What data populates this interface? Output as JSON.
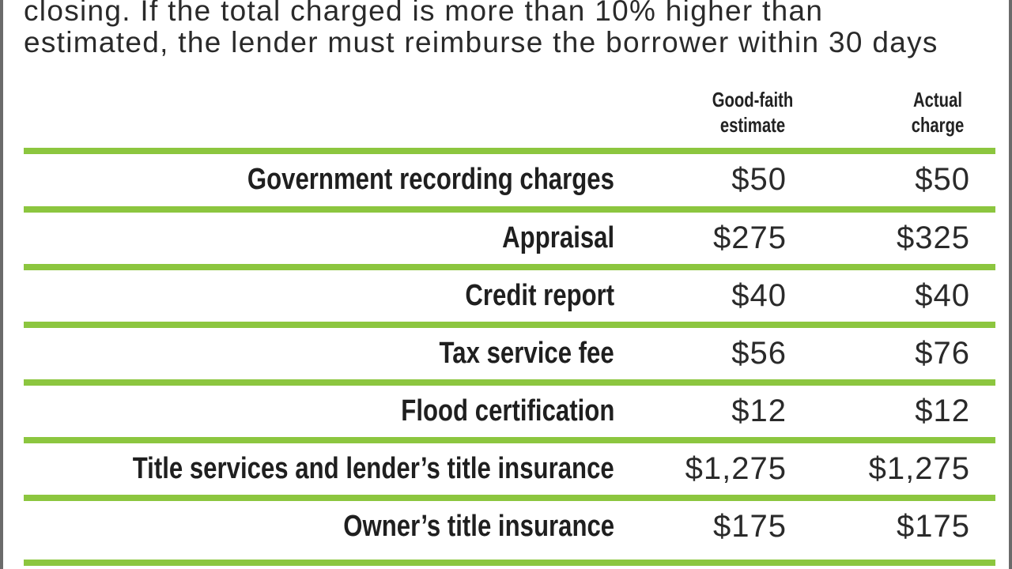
{
  "intro": {
    "line1": "closing. If the total charged is more than 10% higher than",
    "line2": "estimated, the lender must reimburse the borrower within 30 days"
  },
  "columns": {
    "estimate_line1": "Good-faith",
    "estimate_line2": "estimate",
    "actual_line1": "Actual",
    "actual_line2": "charge"
  },
  "rows": [
    {
      "label": "Government recording charges",
      "estimate": "$50",
      "actual": "$50"
    },
    {
      "label": "Appraisal",
      "estimate": "$275",
      "actual": "$325"
    },
    {
      "label": "Credit report",
      "estimate": "$40",
      "actual": "$40"
    },
    {
      "label": "Tax service fee",
      "estimate": "$56",
      "actual": "$76"
    },
    {
      "label": "Flood certification",
      "estimate": "$12",
      "actual": "$12"
    },
    {
      "label": "Title services and lender’s title insurance",
      "estimate": "$1,275",
      "actual": "$1,275"
    },
    {
      "label": "Owner’s title insurance",
      "estimate": "$175",
      "actual": "$175"
    }
  ],
  "colors": {
    "rule": "#8cc63f",
    "border": "#6b6b6b",
    "text": "#1f1f1f"
  }
}
